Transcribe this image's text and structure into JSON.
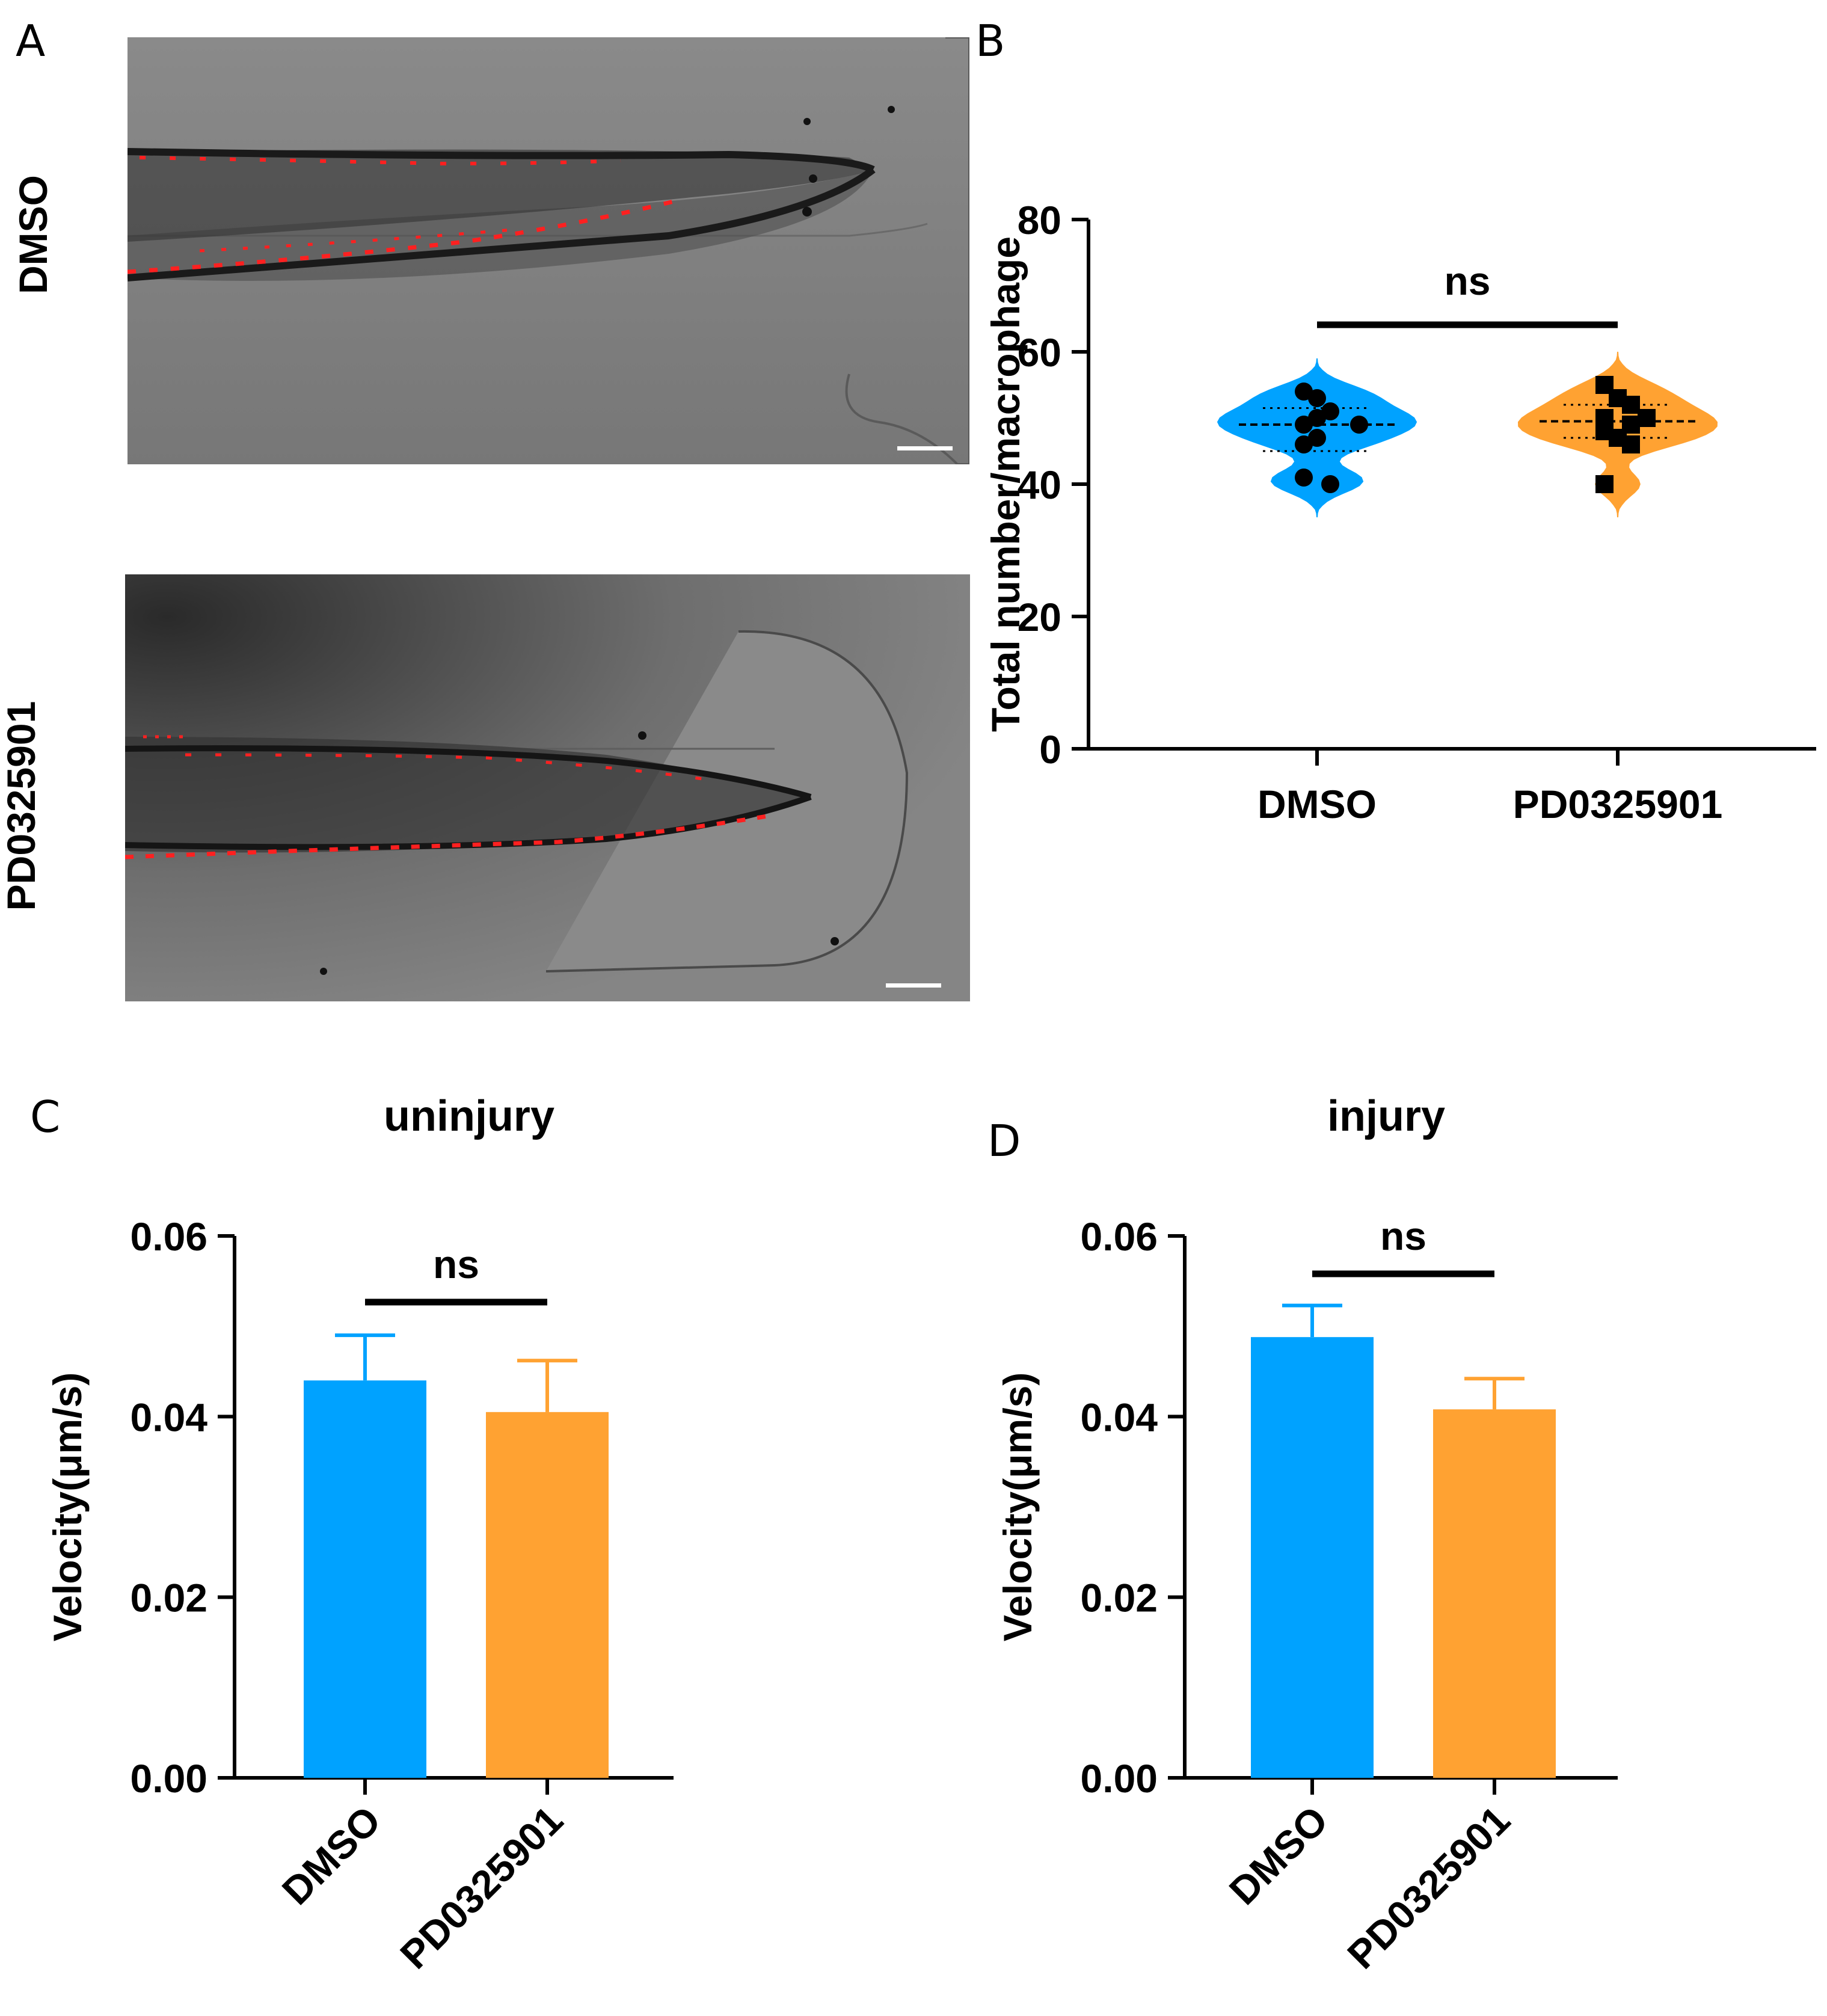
{
  "panels": {
    "a": "A",
    "b": "B",
    "c": "C",
    "d": "D"
  },
  "panel_a": {
    "rows": [
      "DMSO",
      "PD0325901"
    ],
    "overlay_color": "#ff2020"
  },
  "colors": {
    "dmso": "#00a2ff",
    "pd": "#ffa232",
    "axis": "#000000"
  },
  "chart_data": [
    {
      "id": "B",
      "type": "violin",
      "xlabel": "",
      "ylabel": "Total number/macrophage",
      "categories": [
        "DMSO",
        "PD0325901"
      ],
      "ylim": [
        0,
        80
      ],
      "yticks": [
        0,
        20,
        40,
        60,
        80
      ],
      "significance": "ns",
      "series": [
        {
          "name": "DMSO",
          "marker": "circle",
          "points": [
            54,
            53,
            51,
            49,
            50,
            49,
            46,
            47,
            40,
            41
          ],
          "median": 49,
          "quartiles": [
            45,
            51.5
          ],
          "range": [
            35,
            59
          ]
        },
        {
          "name": "PD0325901",
          "marker": "square",
          "points": [
            55,
            53,
            52,
            50,
            50,
            49,
            48,
            47,
            46,
            40
          ],
          "median": 49.5,
          "quartiles": [
            47,
            52
          ],
          "range": [
            35,
            60
          ]
        }
      ]
    },
    {
      "id": "C",
      "type": "bar",
      "title": "uninjury",
      "xlabel": "",
      "ylabel": "Velocity(μm/s)",
      "categories": [
        "DMSO",
        "PD0325901"
      ],
      "values": [
        0.044,
        0.0405
      ],
      "errors": [
        0.005,
        0.0057
      ],
      "ylim": [
        0,
        0.06
      ],
      "yticks": [
        "0.00",
        "0.02",
        "0.04",
        "0.06"
      ],
      "significance": "ns"
    },
    {
      "id": "D",
      "type": "bar",
      "title": "injury",
      "xlabel": "",
      "ylabel": "Velocity(μm/s)",
      "categories": [
        "DMSO",
        "PD0325901"
      ],
      "values": [
        0.0488,
        0.0408
      ],
      "errors": [
        0.0035,
        0.0034
      ],
      "ylim": [
        0,
        0.06
      ],
      "yticks": [
        "0.00",
        "0.02",
        "0.04",
        "0.06"
      ],
      "significance": "ns"
    }
  ]
}
